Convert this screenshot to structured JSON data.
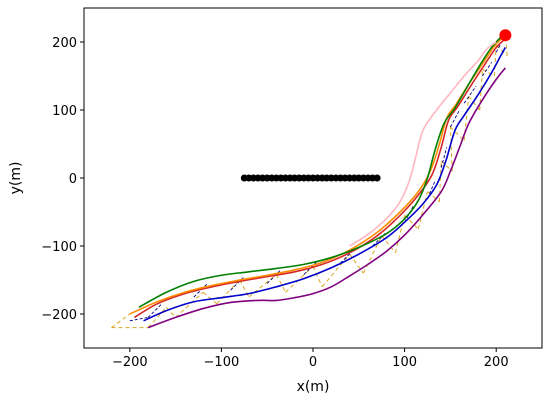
{
  "chart_data": {
    "type": "line",
    "xlabel": "x(m)",
    "ylabel": "y(m)",
    "xlim": [
      -250,
      250
    ],
    "ylim": [
      -250,
      250
    ],
    "xticks": [
      -200,
      -100,
      0,
      100,
      200
    ],
    "yticks": [
      -200,
      -100,
      0,
      100,
      200
    ],
    "xtick_labels": [
      "−200",
      "−100",
      "0",
      "100",
      "200"
    ],
    "ytick_labels": [
      "−200",
      "−100",
      "0",
      "100",
      "200"
    ],
    "grid": false,
    "legend": "none",
    "series": [
      {
        "color": "#800080",
        "style": "solid",
        "x": [
          -180,
          -150,
          -120,
          -90,
          -60,
          -40,
          -20,
          0,
          20,
          40,
          60,
          80,
          100,
          120,
          140,
          150,
          160,
          170,
          185,
          200,
          210
        ],
        "y": [
          -220,
          -205,
          -192,
          -183,
          -180,
          -180,
          -176,
          -170,
          -160,
          -144,
          -127,
          -108,
          -84,
          -54,
          -20,
          10,
          45,
          80,
          115,
          145,
          162
        ]
      },
      {
        "color": "#0000cc",
        "style": "solid",
        "x": [
          -185,
          -160,
          -130,
          -100,
          -70,
          -40,
          -10,
          20,
          50,
          80,
          100,
          120,
          135,
          145,
          155,
          165,
          180,
          195,
          205,
          210
        ],
        "y": [
          -210,
          -195,
          -182,
          -176,
          -170,
          -160,
          -148,
          -132,
          -112,
          -88,
          -65,
          -38,
          -10,
          25,
          70,
          92,
          122,
          155,
          180,
          192
        ]
      },
      {
        "color": "#d62728",
        "style": "solid",
        "x": [
          -195,
          -170,
          -140,
          -110,
          -80,
          -50,
          -20,
          10,
          40,
          70,
          95,
          115,
          130,
          140,
          148,
          158,
          172,
          188,
          200,
          210
        ],
        "y": [
          -205,
          -185,
          -170,
          -160,
          -152,
          -145,
          -138,
          -127,
          -110,
          -85,
          -55,
          -25,
          5,
          45,
          85,
          105,
          135,
          168,
          192,
          205
        ]
      },
      {
        "color": "#ff8c00",
        "style": "solid",
        "x": [
          -200,
          -170,
          -140,
          -110,
          -80,
          -50,
          -20,
          10,
          40,
          70,
          95,
          115,
          128,
          138,
          146,
          156,
          170,
          186,
          198,
          208
        ],
        "y": [
          -200,
          -182,
          -168,
          -158,
          -150,
          -143,
          -135,
          -124,
          -106,
          -80,
          -50,
          -20,
          10,
          50,
          88,
          108,
          138,
          170,
          194,
          208
        ]
      },
      {
        "color": "#008000",
        "style": "solid",
        "x": [
          -190,
          -160,
          -130,
          -100,
          -70,
          -40,
          -10,
          20,
          50,
          80,
          100,
          115,
          125,
          133,
          143,
          155,
          170,
          185,
          195,
          205
        ],
        "y": [
          -190,
          -168,
          -152,
          -143,
          -138,
          -133,
          -127,
          -117,
          -102,
          -82,
          -60,
          -33,
          0,
          40,
          80,
          103,
          138,
          172,
          192,
          207
        ]
      },
      {
        "color": "#ffb6c1",
        "style": "solid",
        "x": [
          40,
          60,
          80,
          95,
          105,
          112,
          120,
          135,
          150,
          165,
          180,
          190,
          200
        ],
        "y": [
          -100,
          -83,
          -60,
          -35,
          -5,
          30,
          70,
          100,
          125,
          150,
          172,
          190,
          200
        ]
      }
    ],
    "obstacle": {
      "color": "#000000",
      "x": [
        -75,
        -70,
        -65,
        -60,
        -55,
        -50,
        -45,
        -40,
        -35,
        -30,
        -25,
        -20,
        -15,
        -10,
        -5,
        0,
        5,
        10,
        15,
        20,
        25,
        30,
        35,
        40,
        45,
        50,
        55,
        60,
        65,
        70
      ],
      "y": [
        0,
        0,
        0,
        0,
        0,
        0,
        0,
        0,
        0,
        0,
        0,
        0,
        0,
        0,
        0,
        0,
        0,
        0,
        0,
        0,
        0,
        0,
        0,
        0,
        0,
        0,
        0,
        0,
        0,
        0
      ]
    },
    "goal": {
      "color": "#ff0000",
      "x": 210,
      "y": 210
    },
    "dashed_segments_orange": [
      [
        [
          -220,
          -220
        ],
        [
          -180,
          -220
        ]
      ],
      [
        [
          -220,
          -220
        ],
        [
          -200,
          -200
        ]
      ],
      [
        [
          -180,
          -220
        ],
        [
          -160,
          -190
        ]
      ],
      [
        [
          -160,
          -190
        ],
        [
          -150,
          -205
        ]
      ],
      [
        [
          -150,
          -205
        ],
        [
          -120,
          -168
        ]
      ],
      [
        [
          -120,
          -168
        ],
        [
          -105,
          -185
        ]
      ],
      [
        [
          -105,
          -185
        ],
        [
          -80,
          -150
        ]
      ],
      [
        [
          -80,
          -150
        ],
        [
          -70,
          -175
        ]
      ],
      [
        [
          -70,
          -175
        ],
        [
          -40,
          -142
        ]
      ],
      [
        [
          -40,
          -142
        ],
        [
          -30,
          -168
        ]
      ],
      [
        [
          -30,
          -168
        ],
        [
          0,
          -130
        ]
      ],
      [
        [
          0,
          -130
        ],
        [
          10,
          -160
        ]
      ],
      [
        [
          10,
          -160
        ],
        [
          40,
          -112
        ]
      ],
      [
        [
          40,
          -112
        ],
        [
          55,
          -140
        ]
      ],
      [
        [
          55,
          -140
        ],
        [
          75,
          -85
        ]
      ],
      [
        [
          75,
          -85
        ],
        [
          90,
          -110
        ]
      ],
      [
        [
          90,
          -110
        ],
        [
          100,
          -55
        ]
      ],
      [
        [
          100,
          -55
        ],
        [
          115,
          -75
        ]
      ],
      [
        [
          115,
          -75
        ],
        [
          125,
          -20
        ]
      ],
      [
        [
          125,
          -20
        ],
        [
          138,
          -35
        ]
      ],
      [
        [
          138,
          -35
        ],
        [
          140,
          25
        ]
      ],
      [
        [
          140,
          25
        ],
        [
          152,
          10
        ]
      ],
      [
        [
          152,
          10
        ],
        [
          150,
          75
        ]
      ],
      [
        [
          150,
          75
        ],
        [
          165,
          55
        ]
      ],
      [
        [
          165,
          55
        ],
        [
          170,
          120
        ]
      ],
      [
        [
          170,
          120
        ],
        [
          182,
          100
        ]
      ],
      [
        [
          182,
          100
        ],
        [
          185,
          160
        ]
      ],
      [
        [
          185,
          160
        ],
        [
          198,
          150
        ]
      ],
      [
        [
          198,
          150
        ],
        [
          200,
          195
        ]
      ],
      [
        [
          200,
          195
        ],
        [
          212,
          180
        ]
      ],
      [
        [
          212,
          180
        ],
        [
          210,
          210
        ]
      ]
    ],
    "dashed_segments_blue": [
      [
        [
          -200,
          -210
        ],
        [
          -180,
          -205
        ]
      ],
      [
        [
          -180,
          -205
        ],
        [
          -165,
          -185
        ]
      ],
      [
        [
          -130,
          -175
        ],
        [
          -115,
          -155
        ]
      ],
      [
        [
          -90,
          -165
        ],
        [
          -75,
          -145
        ]
      ],
      [
        [
          -50,
          -155
        ],
        [
          -35,
          -135
        ]
      ],
      [
        [
          -10,
          -142
        ],
        [
          5,
          -122
        ]
      ],
      [
        [
          30,
          -125
        ],
        [
          45,
          -105
        ]
      ],
      [
        [
          65,
          -100
        ],
        [
          80,
          -80
        ]
      ],
      [
        [
          100,
          -65
        ],
        [
          110,
          -40
        ]
      ],
      [
        [
          125,
          -30
        ],
        [
          133,
          -5
        ]
      ],
      [
        [
          140,
          15
        ],
        [
          146,
          45
        ]
      ],
      [
        [
          150,
          75
        ],
        [
          160,
          100
        ]
      ],
      [
        [
          165,
          110
        ],
        [
          178,
          135
        ]
      ],
      [
        [
          185,
          150
        ],
        [
          195,
          170
        ]
      ],
      [
        [
          200,
          185
        ],
        [
          206,
          200
        ]
      ]
    ]
  }
}
